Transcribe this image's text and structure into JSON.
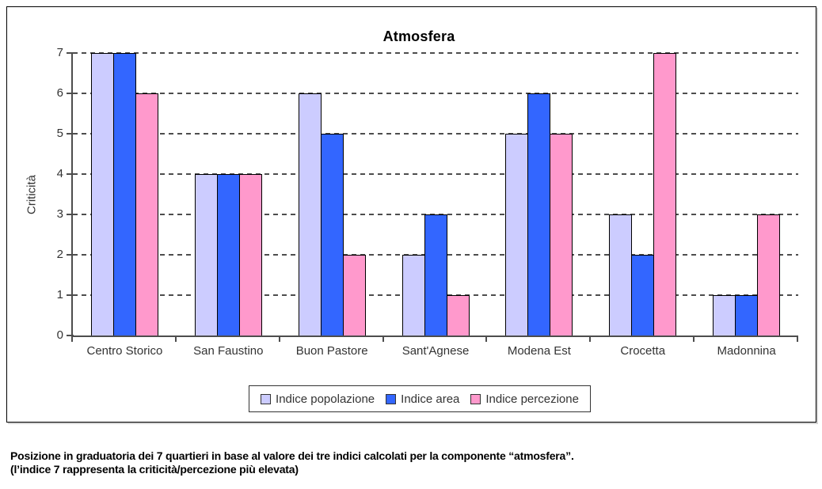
{
  "chart": {
    "title": "Atmosfera",
    "ylabel": "Criticità",
    "caption_line1": "Posizione in graduatoria dei 7 quartieri in base al valore dei tre indici calcolati per la componente “atmosfera”.",
    "caption_line2": "(l’indice 7 rappresenta la criticità/percezione più elevata)"
  },
  "colors": {
    "series_popolazione": "#ccccff",
    "series_area": "#3366ff",
    "series_percezione": "#ff99cc",
    "axis": "#4d4d4d",
    "bar_border": "#000000"
  },
  "chart_data": {
    "type": "bar",
    "title": "Atmosfera",
    "xlabel": "",
    "ylabel": "Criticità",
    "ylim": [
      0,
      7
    ],
    "yticks": [
      0,
      1,
      2,
      3,
      4,
      5,
      6,
      7
    ],
    "grid": "horizontal-dashed",
    "legend_position": "bottom",
    "categories": [
      "Centro Storico",
      "San Faustino",
      "Buon Pastore",
      "Sant'Agnese",
      "Modena Est",
      "Crocetta",
      "Madonnina"
    ],
    "series": [
      {
        "name": "Indice popolazione",
        "color": "#ccccff",
        "values": [
          7,
          4,
          6,
          2,
          5,
          3,
          1
        ]
      },
      {
        "name": "Indice area",
        "color": "#3366ff",
        "values": [
          7,
          4,
          5,
          3,
          6,
          2,
          1
        ]
      },
      {
        "name": "Indice percezione",
        "color": "#ff99cc",
        "values": [
          6,
          4,
          2,
          1,
          5,
          7,
          3
        ]
      }
    ]
  }
}
